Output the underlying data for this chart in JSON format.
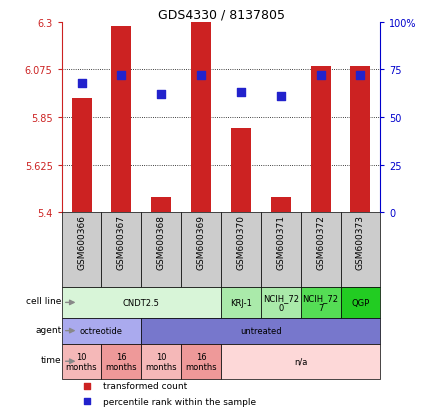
{
  "title": "GDS4330 / 8137805",
  "samples": [
    "GSM600366",
    "GSM600367",
    "GSM600368",
    "GSM600369",
    "GSM600370",
    "GSM600371",
    "GSM600372",
    "GSM600373"
  ],
  "bar_values": [
    5.94,
    6.28,
    5.47,
    6.3,
    5.8,
    5.47,
    6.09,
    6.09
  ],
  "dot_values": [
    0.68,
    0.72,
    0.62,
    0.72,
    0.63,
    0.61,
    0.72,
    0.72
  ],
  "ylim": [
    5.4,
    6.3
  ],
  "yticks": [
    5.4,
    5.625,
    5.85,
    6.075,
    6.3
  ],
  "ytick_labels": [
    "5.4",
    "5.625",
    "5.85",
    "6.075",
    "6.3"
  ],
  "y2ticks": [
    0,
    0.25,
    0.5,
    0.75,
    1.0
  ],
  "y2tick_labels": [
    "0",
    "25",
    "50",
    "75",
    "100%"
  ],
  "bar_color": "#cc2222",
  "dot_color": "#2222cc",
  "bar_bottom": 5.4,
  "cell_line_groups": [
    {
      "label": "CNDT2.5",
      "span": [
        0,
        4
      ],
      "color": "#d8f5d8"
    },
    {
      "label": "KRJ-1",
      "span": [
        4,
        5
      ],
      "color": "#aaeaaa"
    },
    {
      "label": "NCIH_72\n0",
      "span": [
        5,
        6
      ],
      "color": "#aaeaaa"
    },
    {
      "label": "NCIH_72\n7",
      "span": [
        6,
        7
      ],
      "color": "#55dd55"
    },
    {
      "label": "QGP",
      "span": [
        7,
        8
      ],
      "color": "#22cc22"
    }
  ],
  "agent_groups": [
    {
      "label": "octreotide",
      "span": [
        0,
        2
      ],
      "color": "#aaaaee"
    },
    {
      "label": "untreated",
      "span": [
        2,
        8
      ],
      "color": "#7777cc"
    }
  ],
  "time_groups": [
    {
      "label": "10\nmonths",
      "span": [
        0,
        1
      ],
      "color": "#f5b8b8"
    },
    {
      "label": "16\nmonths",
      "span": [
        1,
        2
      ],
      "color": "#ee9999"
    },
    {
      "label": "10\nmonths",
      "span": [
        2,
        3
      ],
      "color": "#f5b8b8"
    },
    {
      "label": "16\nmonths",
      "span": [
        3,
        4
      ],
      "color": "#ee9999"
    },
    {
      "label": "n/a",
      "span": [
        4,
        8
      ],
      "color": "#fdd8d8"
    }
  ],
  "legend_items": [
    {
      "label": "transformed count",
      "color": "#cc2222"
    },
    {
      "label": "percentile rank within the sample",
      "color": "#2222cc"
    }
  ],
  "bar_width": 0.5,
  "dot_size": 40,
  "grid_color": "#000000",
  "grid_linestyle": ":",
  "bg_color": "#ffffff",
  "sample_bg_color": "#cccccc",
  "left_label_color": "#cc2222",
  "right_label_color": "#0000cc"
}
